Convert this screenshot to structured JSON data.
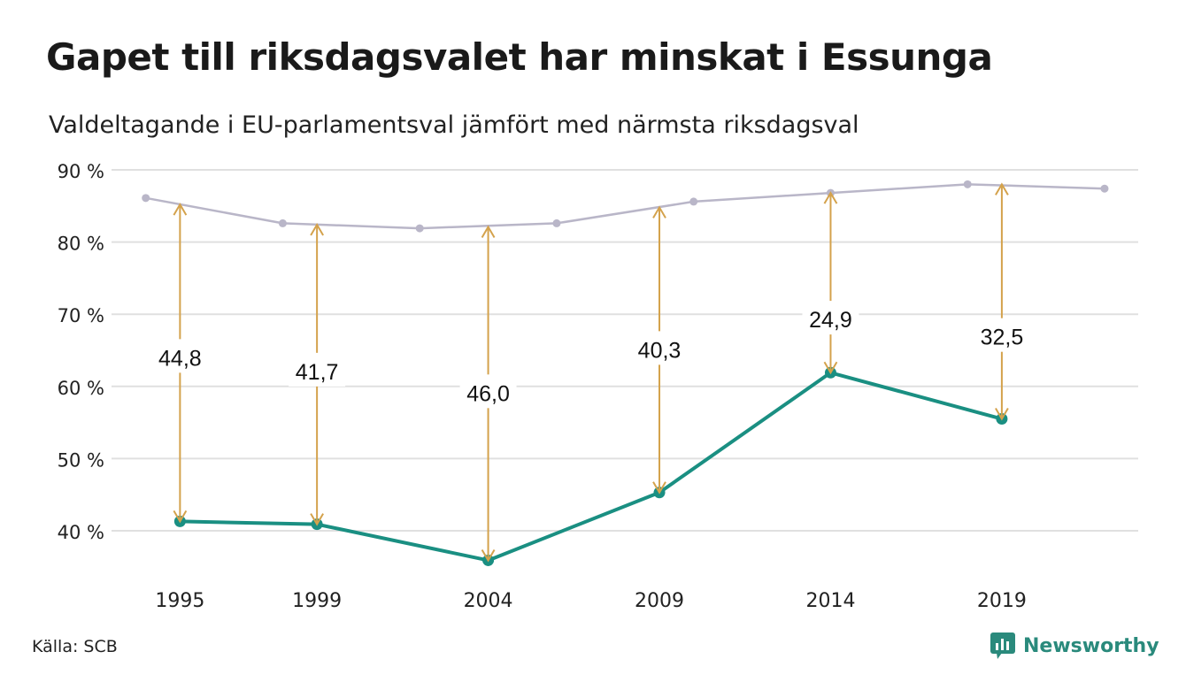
{
  "header": {
    "title": "Gapet till riksdagsvalet har minskat i Essunga",
    "subtitle": "Valdeltagande i EU-parlamentsval jämfört med närmsta riksdagsval"
  },
  "footer": {
    "source": "Källa: SCB",
    "brand": "Newsworthy",
    "brand_icon": "newsworthy-logo-icon"
  },
  "colors": {
    "eu_line": "#1a8f82",
    "riksdag_line": "#b9b6c8",
    "arrow": "#d4a24c",
    "grid": "#e0e0e0",
    "brand": "#2a8a7c"
  },
  "chart_data": {
    "type": "line",
    "x_range": [
      1993,
      2023.5
    ],
    "ylim": [
      36,
      90
    ],
    "y_ticks": [
      40,
      50,
      60,
      70,
      80,
      90
    ],
    "y_tick_labels": [
      "40 %",
      "50 %",
      "60 %",
      "70 %",
      "80 %",
      "90 %"
    ],
    "x_ticks": [
      1995,
      1999,
      2004,
      2009,
      2014,
      2019
    ],
    "x_tick_labels": [
      "1995",
      "1999",
      "2004",
      "2009",
      "2014",
      "2019"
    ],
    "grid": "horizontal",
    "series": [
      {
        "key": "riksdag",
        "points": [
          {
            "x": 1994,
            "y": 86.1
          },
          {
            "x": 1998,
            "y": 82.6
          },
          {
            "x": 2002,
            "y": 81.9
          },
          {
            "x": 2006,
            "y": 82.6
          },
          {
            "x": 2010,
            "y": 85.6
          },
          {
            "x": 2014,
            "y": 86.8
          },
          {
            "x": 2018,
            "y": 88.0
          },
          {
            "x": 2022,
            "y": 87.4
          }
        ]
      },
      {
        "key": "eu",
        "points": [
          {
            "x": 1995,
            "y": 41.3
          },
          {
            "x": 1999,
            "y": 40.9
          },
          {
            "x": 2004,
            "y": 35.9
          },
          {
            "x": 2009,
            "y": 45.3
          },
          {
            "x": 2014,
            "y": 61.9
          },
          {
            "x": 2019,
            "y": 55.5
          }
        ]
      }
    ],
    "gaps": [
      {
        "x": 1995,
        "from": 41.3,
        "to": 85.2,
        "label": "44,8",
        "label_y": 64.1
      },
      {
        "x": 1999,
        "from": 40.9,
        "to": 82.4,
        "label": "41,7",
        "label_y": 62.2
      },
      {
        "x": 2004,
        "from": 35.9,
        "to": 82.1,
        "label": "46,0",
        "label_y": 59.2
      },
      {
        "x": 2009,
        "from": 45.3,
        "to": 84.8,
        "label": "40,3",
        "label_y": 65.2
      },
      {
        "x": 2014,
        "from": 61.9,
        "to": 86.8,
        "label": "24,9",
        "label_y": 69.4
      },
      {
        "x": 2019,
        "from": 55.5,
        "to": 88.0,
        "label": "32,5",
        "label_y": 67.0
      }
    ]
  }
}
